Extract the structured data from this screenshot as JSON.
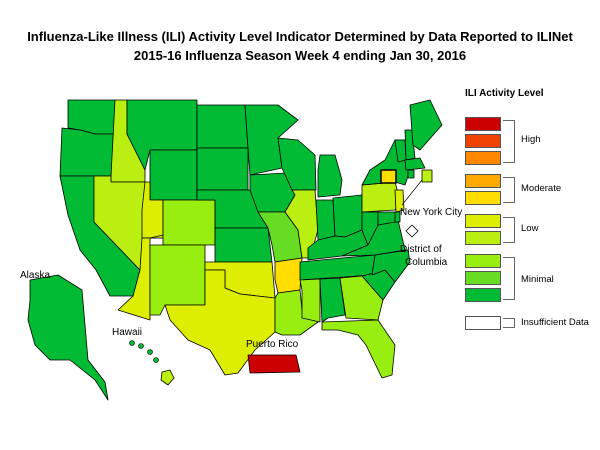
{
  "title_line1": "Influenza-Like Illness (ILI) Activity Level Indicator Determined by Data Reported to ILINet",
  "title_line2": "2015-16  Influenza Season Week  4 ending Jan 30, 2016",
  "labels": {
    "alaska": "Alaska",
    "hawaii": "Hawaii",
    "puerto_rico": "Puerto Rico",
    "nyc": "New York City",
    "dc_line1": "District of",
    "dc_line2": "Columbia"
  },
  "legend": {
    "title": "ILI Activity Level",
    "groups": [
      {
        "name": "High",
        "levels": [
          10,
          9,
          8
        ]
      },
      {
        "name": "Moderate",
        "levels": [
          7,
          6
        ]
      },
      {
        "name": "Low",
        "levels": [
          5,
          4
        ]
      },
      {
        "name": "Minimal",
        "levels": [
          3,
          2,
          1
        ]
      },
      {
        "name": "Insufficient Data",
        "levels": [
          0
        ]
      }
    ],
    "level_colors": {
      "10": "#cc0000",
      "9": "#ee4400",
      "8": "#ff8800",
      "7": "#ffaa00",
      "6": "#ffdd00",
      "5": "#ddee00",
      "4": "#bbee11",
      "3": "#99ee11",
      "2": "#66dd22",
      "1": "#00bb33",
      "0": "#ffffff"
    }
  },
  "activity": {
    "Washington": 1,
    "Oregon": 1,
    "California": 1,
    "Idaho": 4,
    "Nevada": 4,
    "Montana": 1,
    "Wyoming": 1,
    "Utah": 5,
    "Arizona": 5,
    "Colorado": 3,
    "New Mexico": 3,
    "North Dakota": 1,
    "South Dakota": 1,
    "Nebraska": 1,
    "Kansas": 1,
    "Oklahoma": 5,
    "Texas": 5,
    "Minnesota": 1,
    "Iowa": 1,
    "Missouri": 2,
    "Arkansas": 6,
    "Louisiana": 3,
    "Wisconsin": 1,
    "Illinois": 4,
    "Michigan": 1,
    "Indiana": 1,
    "Ohio": 1,
    "Kentucky": 1,
    "Tennessee": 1,
    "Mississippi": 3,
    "Alabama": 1,
    "Georgia": 3,
    "Florida": 3,
    "South Carolina": 1,
    "North Carolina": 1,
    "Virginia": 1,
    "West Virginia": 1,
    "Pennsylvania": 4,
    "New York": 1,
    "Vermont": 1,
    "New Hampshire": 1,
    "Maine": 1,
    "Massachusetts": 1,
    "Connecticut": 6,
    "Rhode Island": 1,
    "New Jersey": 5,
    "Delaware": 1,
    "Maryland": 1,
    "Alaska": 1,
    "Hawaii": 4,
    "Puerto Rico": 10,
    "New York City": 4,
    "District of Columbia": 0
  }
}
